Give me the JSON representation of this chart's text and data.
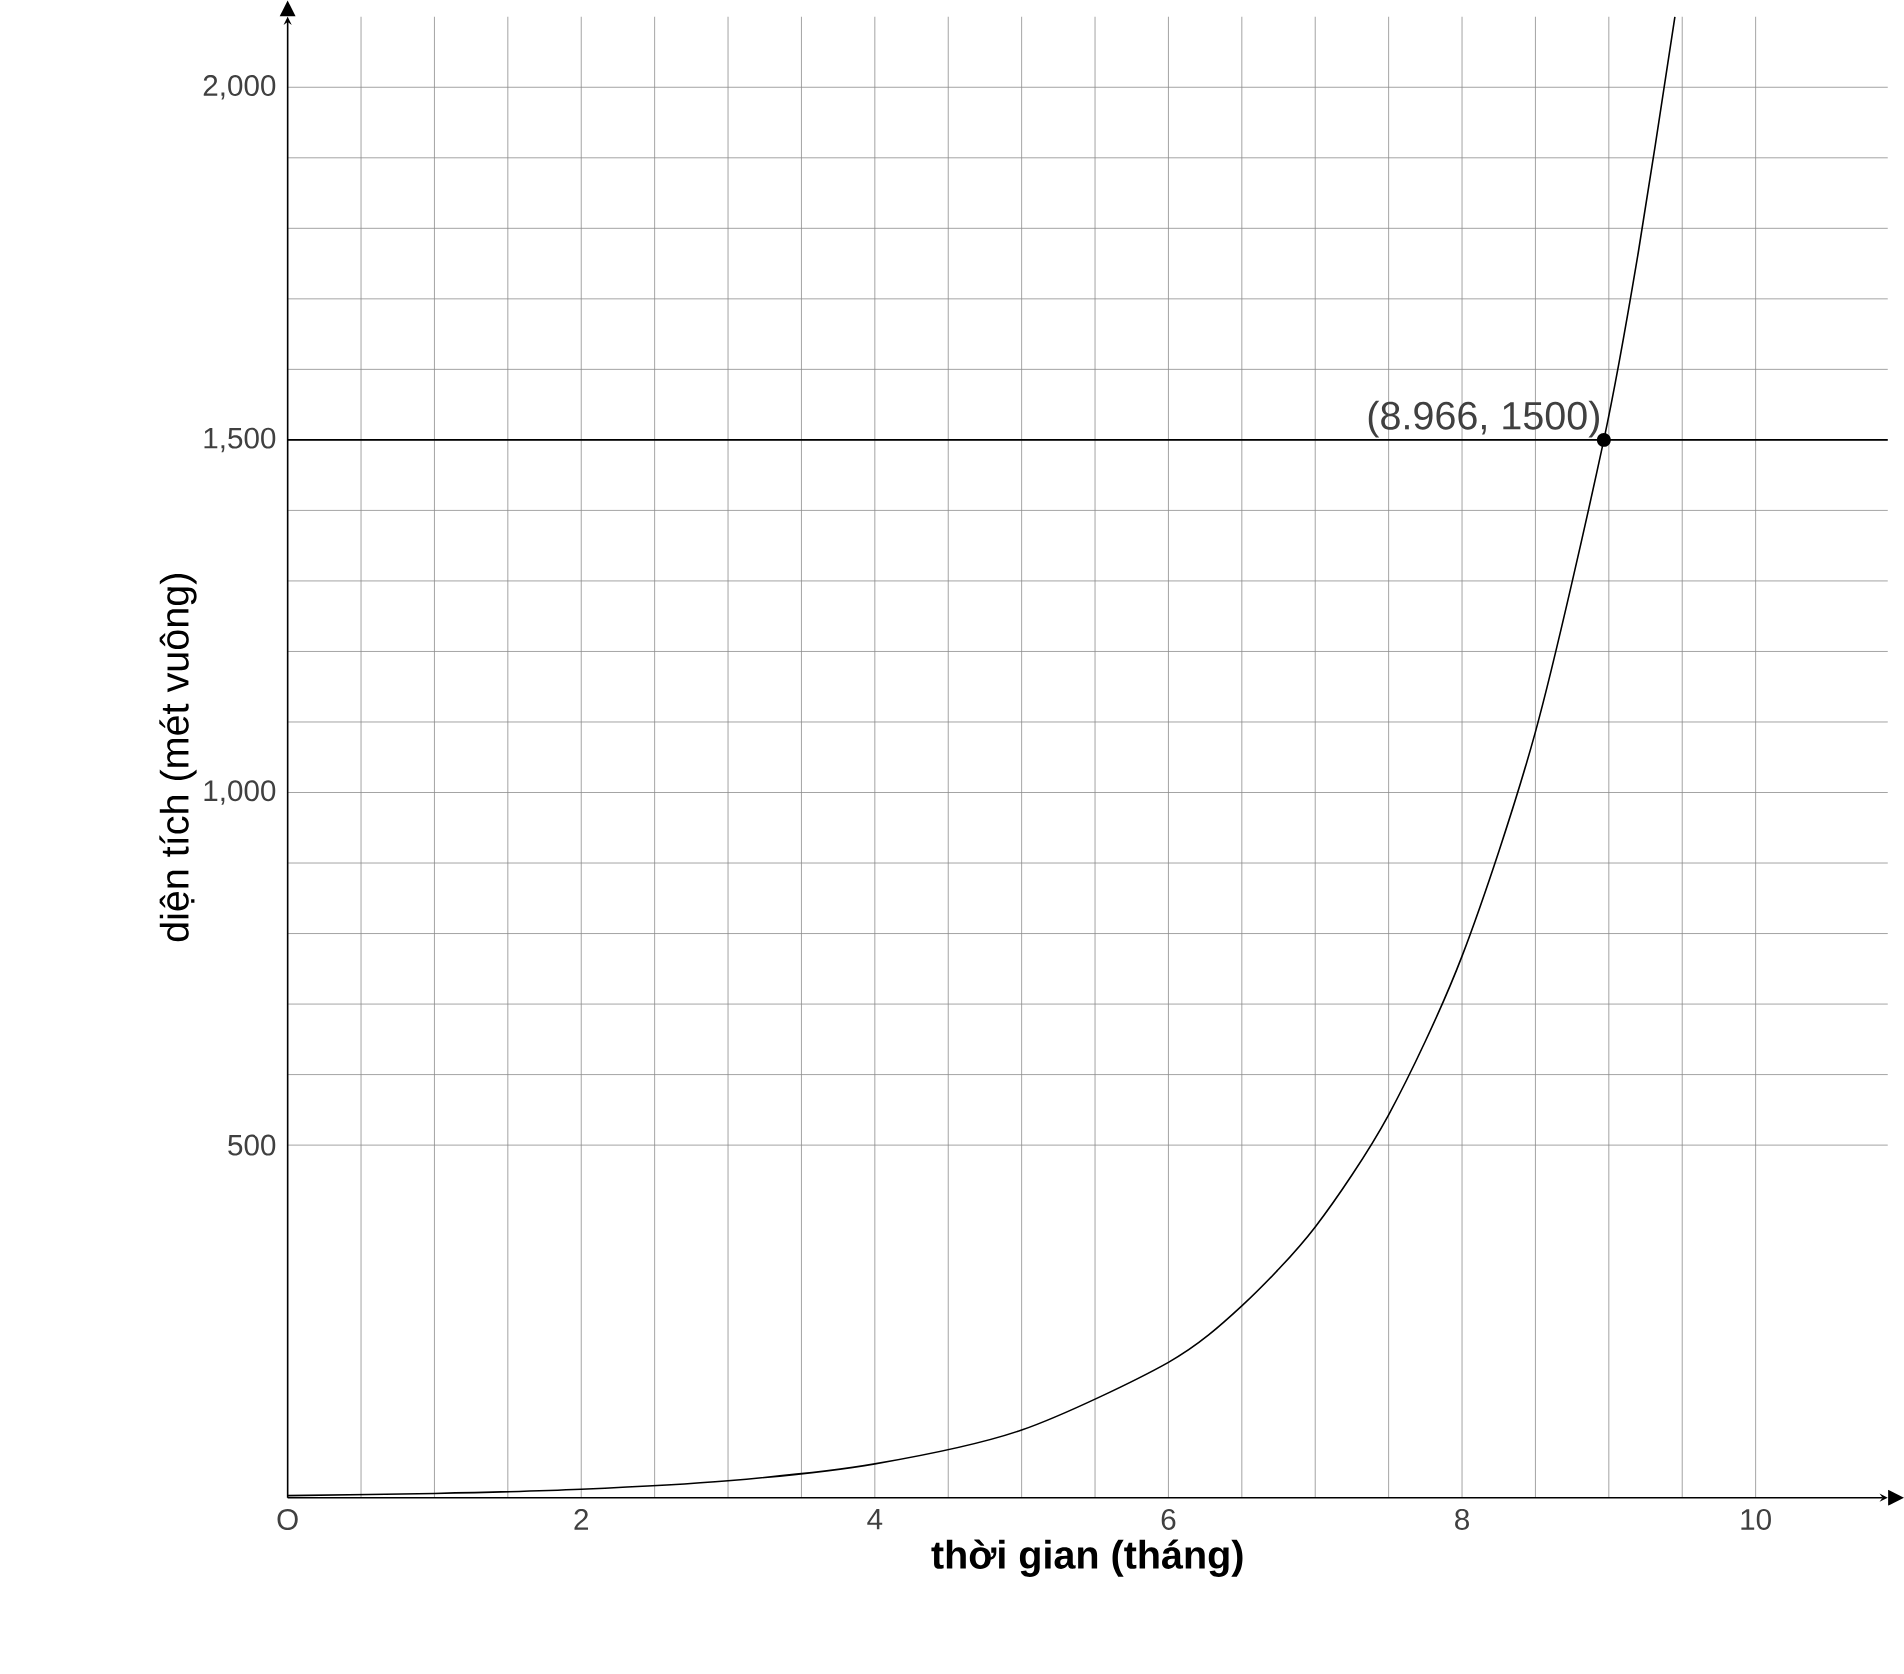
{
  "chart_data": {
    "type": "line",
    "xlabel": "thời gian (tháng)",
    "ylabel": "diện tích (mét vuông)",
    "x": [
      0,
      1,
      2,
      3,
      4,
      5,
      6,
      6.5,
      7,
      7.5,
      8,
      8.5,
      8.966,
      9.2,
      9.45
    ],
    "series": [
      {
        "color": "#000000",
        "values": [
          3,
          6,
          12,
          24,
          48,
          96,
          192,
          272,
          384,
          543,
          768,
          1086,
          1500,
          1765,
          2100
        ]
      }
    ],
    "xlim": [
      0,
      10.9
    ],
    "ylim": [
      0,
      2100
    ],
    "xticks": [
      {
        "value": 0,
        "label": "O"
      },
      2,
      4,
      6,
      8,
      10
    ],
    "yticks": [
      {
        "value": 500,
        "label": "500"
      },
      {
        "value": 1000,
        "label": "1,000"
      },
      {
        "value": 1500,
        "label": "1,500"
      },
      {
        "value": 2000,
        "label": "2,000"
      }
    ],
    "ref_lines": [
      {
        "axis": "y",
        "value": 1500,
        "color": "#000000"
      }
    ],
    "annotations": [
      {
        "text": "(8.966, 1500)",
        "x": 8.966,
        "y": 1500
      }
    ],
    "grid": true,
    "marker": "none",
    "line_style": "solid"
  }
}
